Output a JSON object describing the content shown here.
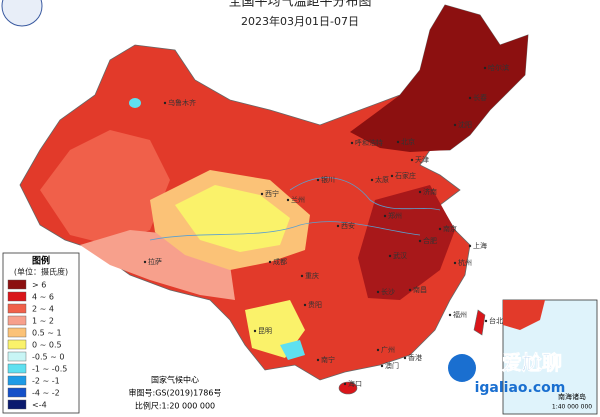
{
  "title": "全国平均气温距平分布图",
  "subtitle": "2023年03月01日-07日",
  "legend": {
    "title": "图例",
    "unit": "(单位：摄氏度)",
    "items": [
      {
        "label": "> 6",
        "color": "#8c1010"
      },
      {
        "label": "4 ~ 6",
        "color": "#d9161a"
      },
      {
        "label": "2 ~ 4",
        "color": "#f0604a"
      },
      {
        "label": "1 ~ 2",
        "color": "#f7a08c"
      },
      {
        "label": "0.5 ~ 1",
        "color": "#fbc277"
      },
      {
        "label": "0 ~ 0.5",
        "color": "#faf26a"
      },
      {
        "label": "-0.5 ~ 0",
        "color": "#c8f5f5"
      },
      {
        "label": "-1 ~ -0.5",
        "color": "#5fe0f0"
      },
      {
        "label": "-2 ~ -1",
        "color": "#1e9be6"
      },
      {
        "label": "-4 ~ -2",
        "color": "#1450c8"
      },
      {
        "label": "<-4",
        "color": "#0a1a6e"
      }
    ]
  },
  "cities": [
    "哈尔滨",
    "长春",
    "沈阳",
    "北京",
    "天津",
    "呼和浩特",
    "太原",
    "石家庄",
    "济南",
    "郑州",
    "西安",
    "银川",
    "兰州",
    "西宁",
    "乌鲁木齐",
    "拉萨",
    "成都",
    "重庆",
    "武汉",
    "合肥",
    "南京",
    "上海",
    "杭州",
    "长沙",
    "南昌",
    "福州",
    "台北",
    "贵阳",
    "昆明",
    "南宁",
    "广州",
    "香港",
    "澳门",
    "海口"
  ],
  "footer": [
    "国家气候中心",
    "审图号:GS(2019)1786号",
    "比例尺:1:20 000 000"
  ],
  "inset": {
    "title": "南海诸岛",
    "scale": "1:40 000 000"
  },
  "watermark": {
    "brand": "爱尬聊",
    "url": "igaliao.com"
  }
}
